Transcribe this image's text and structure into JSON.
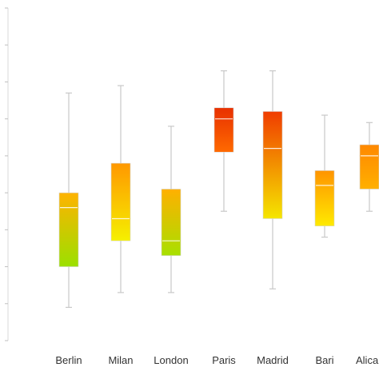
{
  "chart_data": {
    "type": "boxplot",
    "title": "",
    "xlabel": "",
    "ylabel": "",
    "ylim": [
      0,
      9
    ],
    "categories": [
      "Berlin",
      "Milan",
      "London",
      "Paris",
      "Madrid",
      "Bari",
      "Alica"
    ],
    "series": [
      {
        "boxes": [
          {
            "min": 0.9,
            "q1": 2.0,
            "median": 3.6,
            "q3": 4.0,
            "max": 6.7,
            "color_top": "#ffb300",
            "color_bottom": "#9be000"
          },
          {
            "min": 1.3,
            "q1": 2.7,
            "median": 3.3,
            "q3": 4.8,
            "max": 6.9,
            "color_top": "#ff9800",
            "color_bottom": "#f5f000"
          },
          {
            "min": 1.3,
            "q1": 2.3,
            "median": 2.7,
            "q3": 4.1,
            "max": 5.8,
            "color_top": "#ffb000",
            "color_bottom": "#a8e000"
          },
          {
            "min": 3.5,
            "q1": 5.1,
            "median": 6.0,
            "q3": 6.3,
            "max": 7.3,
            "color_top": "#e83000",
            "color_bottom": "#ff6a00"
          },
          {
            "min": 1.4,
            "q1": 3.3,
            "median": 5.2,
            "q3": 6.2,
            "max": 7.3,
            "color_top": "#f03c00",
            "color_bottom": "#f5e600"
          },
          {
            "min": 2.8,
            "q1": 3.1,
            "median": 4.2,
            "q3": 4.6,
            "max": 6.1,
            "color_top": "#ff9400",
            "color_bottom": "#ffea00"
          },
          {
            "min": 3.5,
            "q1": 4.1,
            "median": 5.0,
            "q3": 5.3,
            "max": 5.9,
            "color_top": "#ff8800",
            "color_bottom": "#ffb000"
          }
        ]
      }
    ],
    "grid": false,
    "legend": "none"
  }
}
